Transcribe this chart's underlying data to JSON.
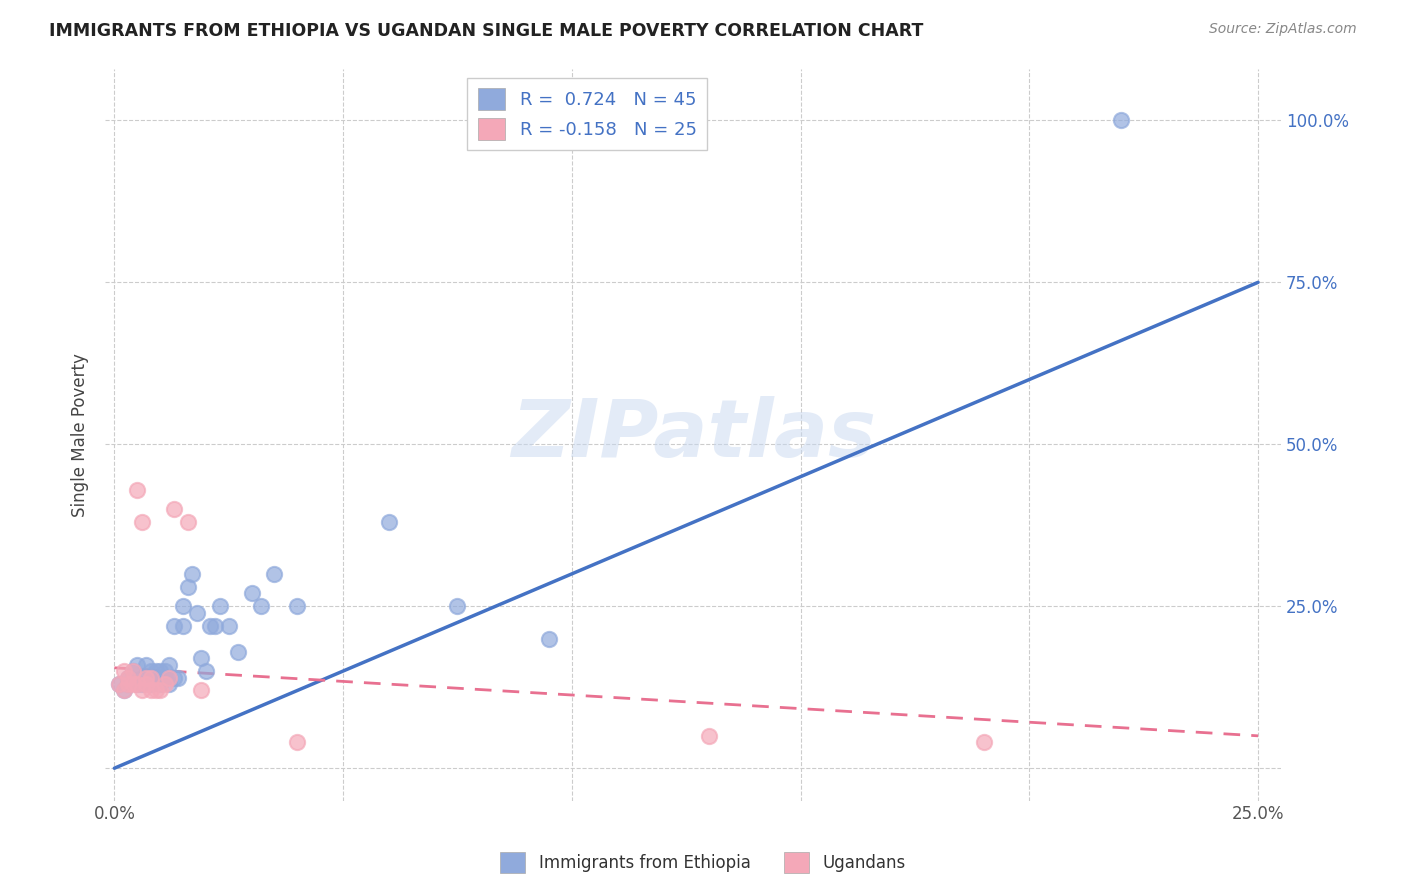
{
  "title": "IMMIGRANTS FROM ETHIOPIA VS UGANDAN SINGLE MALE POVERTY CORRELATION CHART",
  "source": "Source: ZipAtlas.com",
  "xlabel_label": "Immigrants from Ethiopia",
  "ylabel_label": "Single Male Poverty",
  "x_tick_positions": [
    0.0,
    0.05,
    0.1,
    0.15,
    0.2,
    0.25
  ],
  "x_tick_labels": [
    "0.0%",
    "",
    "",
    "",
    "",
    "25.0%"
  ],
  "y_ticks": [
    0.0,
    0.25,
    0.5,
    0.75,
    1.0
  ],
  "y_tick_labels_right": [
    "",
    "25.0%",
    "50.0%",
    "75.0%",
    "100.0%"
  ],
  "xlim": [
    -0.002,
    0.255
  ],
  "ylim": [
    -0.05,
    1.08
  ],
  "blue_R": 0.724,
  "blue_N": 45,
  "pink_R": -0.158,
  "pink_N": 25,
  "blue_scatter_color": "#90aadc",
  "pink_scatter_color": "#f4a8b8",
  "blue_line_color": "#4472c4",
  "pink_line_color": "#e87090",
  "right_tick_color": "#4472c4",
  "watermark": "ZIPatlas",
  "blue_line_x0": 0.0,
  "blue_line_y0": 0.0,
  "blue_line_x1": 0.25,
  "blue_line_y1": 0.75,
  "pink_line_x0": 0.0,
  "pink_line_y0": 0.155,
  "pink_line_x1": 0.25,
  "pink_line_y1": 0.05,
  "blue_scatter_x": [
    0.001,
    0.002,
    0.003,
    0.003,
    0.004,
    0.005,
    0.005,
    0.006,
    0.006,
    0.007,
    0.007,
    0.008,
    0.008,
    0.009,
    0.009,
    0.01,
    0.01,
    0.01,
    0.011,
    0.011,
    0.012,
    0.012,
    0.013,
    0.013,
    0.014,
    0.015,
    0.015,
    0.016,
    0.017,
    0.018,
    0.019,
    0.02,
    0.021,
    0.022,
    0.023,
    0.025,
    0.027,
    0.03,
    0.032,
    0.035,
    0.04,
    0.06,
    0.075,
    0.095,
    0.22
  ],
  "blue_scatter_y": [
    0.13,
    0.12,
    0.14,
    0.13,
    0.15,
    0.13,
    0.16,
    0.14,
    0.13,
    0.14,
    0.16,
    0.15,
    0.13,
    0.14,
    0.15,
    0.14,
    0.15,
    0.13,
    0.14,
    0.15,
    0.13,
    0.16,
    0.22,
    0.14,
    0.14,
    0.22,
    0.25,
    0.28,
    0.3,
    0.24,
    0.17,
    0.15,
    0.22,
    0.22,
    0.25,
    0.22,
    0.18,
    0.27,
    0.25,
    0.3,
    0.25,
    0.38,
    0.25,
    0.2,
    1.0
  ],
  "pink_scatter_x": [
    0.001,
    0.002,
    0.002,
    0.003,
    0.003,
    0.004,
    0.004,
    0.005,
    0.005,
    0.006,
    0.006,
    0.007,
    0.007,
    0.008,
    0.008,
    0.009,
    0.01,
    0.011,
    0.012,
    0.013,
    0.016,
    0.019,
    0.04,
    0.13,
    0.19
  ],
  "pink_scatter_y": [
    0.13,
    0.12,
    0.15,
    0.13,
    0.14,
    0.13,
    0.15,
    0.43,
    0.13,
    0.12,
    0.38,
    0.13,
    0.14,
    0.12,
    0.14,
    0.12,
    0.12,
    0.13,
    0.14,
    0.4,
    0.38,
    0.12,
    0.04,
    0.05,
    0.04
  ]
}
